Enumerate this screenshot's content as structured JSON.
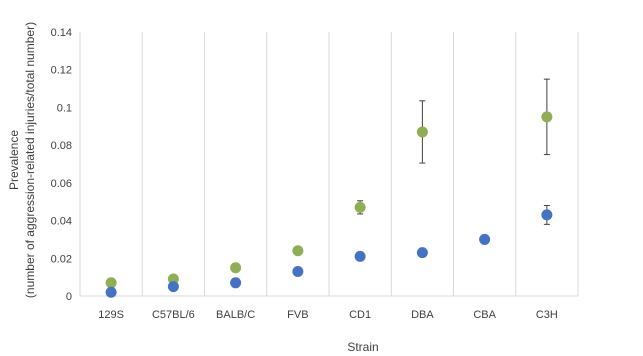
{
  "chart_data": {
    "type": "scatter",
    "categories": [
      "129S",
      "C57BL/6",
      "BALB/C",
      "FVB",
      "CD1",
      "DBA",
      "CBA",
      "C3H"
    ],
    "series": [
      {
        "name": "",
        "color": "#8faf52",
        "values": [
          0.007,
          0.009,
          0.015,
          0.024,
          0.047,
          0.087,
          null,
          0.095
        ],
        "error": [
          null,
          null,
          null,
          null,
          0.0035,
          0.0165,
          null,
          0.02
        ]
      },
      {
        "name": "",
        "color": "#4472c4",
        "values": [
          0.002,
          0.005,
          0.007,
          0.013,
          0.021,
          0.023,
          0.03,
          0.043
        ],
        "error": [
          null,
          null,
          null,
          null,
          null,
          null,
          null,
          0.005
        ]
      }
    ],
    "yticks": [
      "0",
      "0.02",
      "0.04",
      "0.06",
      "0.08",
      "0.1",
      "0.12",
      "0.14"
    ],
    "ylim": [
      0,
      0.14
    ],
    "ylabel_line1": "Prevalence",
    "ylabel_line2": "(number of aggression-related injuries/total number)",
    "xlabel": "Strain",
    "grid": "vertical category lines",
    "legend": "none"
  }
}
